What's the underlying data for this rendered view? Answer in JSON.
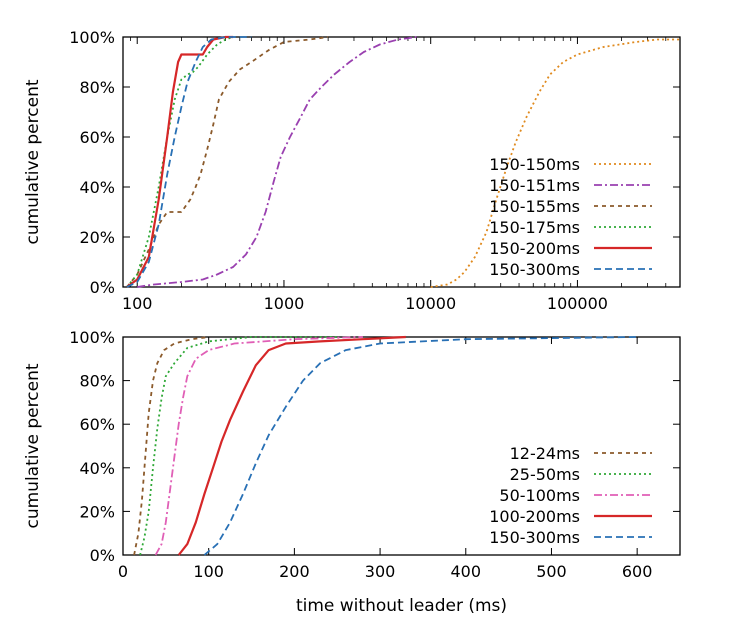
{
  "chart_data": [
    {
      "type": "line",
      "title": "",
      "xlabel": "",
      "ylabel": "cumulative percent",
      "x_scale": "log",
      "xlim": [
        80,
        500000
      ],
      "ylim": [
        0,
        100
      ],
      "x_ticks": [
        {
          "value": 100,
          "label": "100"
        },
        {
          "value": 1000,
          "label": "1000"
        },
        {
          "value": 10000,
          "label": "10000"
        },
        {
          "value": 100000,
          "label": "100000"
        }
      ],
      "y_ticks": [
        {
          "value": 0,
          "label": "0%"
        },
        {
          "value": 20,
          "label": "20%"
        },
        {
          "value": 40,
          "label": "40%"
        },
        {
          "value": 60,
          "label": "60%"
        },
        {
          "value": 80,
          "label": "80%"
        },
        {
          "value": 100,
          "label": "100%"
        }
      ],
      "legend_position": "bottom-right",
      "series": [
        {
          "name": "150-150ms",
          "color": "#e08a1e",
          "dash": "dotted",
          "points": [
            [
              10000,
              0
            ],
            [
              13000,
              1
            ],
            [
              15000,
              3
            ],
            [
              17000,
              6
            ],
            [
              20000,
              12
            ],
            [
              24000,
              22
            ],
            [
              28000,
              35
            ],
            [
              33000,
              48
            ],
            [
              38000,
              58
            ],
            [
              45000,
              68
            ],
            [
              55000,
              78
            ],
            [
              65000,
              85
            ],
            [
              80000,
              90
            ],
            [
              100000,
              93
            ],
            [
              150000,
              96
            ],
            [
              250000,
              98
            ],
            [
              350000,
              99
            ],
            [
              500000,
              99
            ]
          ]
        },
        {
          "name": "150-151ms",
          "color": "#9a40b0",
          "dash": "dashdot",
          "points": [
            [
              100,
              0
            ],
            [
              130,
              1
            ],
            [
              200,
              2
            ],
            [
              280,
              3
            ],
            [
              350,
              5
            ],
            [
              450,
              8
            ],
            [
              550,
              13
            ],
            [
              650,
              20
            ],
            [
              750,
              30
            ],
            [
              850,
              42
            ],
            [
              950,
              52
            ],
            [
              1100,
              60
            ],
            [
              1300,
              68
            ],
            [
              1500,
              75
            ],
            [
              1800,
              80
            ],
            [
              2200,
              85
            ],
            [
              2800,
              90
            ],
            [
              3500,
              94
            ],
            [
              4500,
              97
            ],
            [
              6000,
              99
            ],
            [
              8000,
              100
            ]
          ]
        },
        {
          "name": "150-155ms",
          "color": "#8b5a2b",
          "dash": "dash-short",
          "points": [
            [
              85,
              0
            ],
            [
              100,
              5
            ],
            [
              120,
              15
            ],
            [
              140,
              25
            ],
            [
              160,
              30
            ],
            [
              200,
              30
            ],
            [
              230,
              35
            ],
            [
              250,
              40
            ],
            [
              270,
              45
            ],
            [
              300,
              55
            ],
            [
              330,
              65
            ],
            [
              360,
              75
            ],
            [
              420,
              82
            ],
            [
              500,
              87
            ],
            [
              600,
              90
            ],
            [
              800,
              95
            ],
            [
              1000,
              98
            ],
            [
              1500,
              99
            ],
            [
              2000,
              100
            ]
          ]
        },
        {
          "name": "150-175ms",
          "color": "#2ea836",
          "dash": "dotted",
          "points": [
            [
              85,
              0
            ],
            [
              100,
              5
            ],
            [
              120,
              20
            ],
            [
              140,
              40
            ],
            [
              160,
              60
            ],
            [
              180,
              75
            ],
            [
              200,
              83
            ],
            [
              220,
              85
            ],
            [
              240,
              86
            ],
            [
              260,
              88
            ],
            [
              300,
              93
            ],
            [
              350,
              97
            ],
            [
              400,
              99
            ],
            [
              450,
              100
            ]
          ]
        },
        {
          "name": "150-200ms",
          "color": "#d62728",
          "dash": "solid",
          "points": [
            [
              85,
              0
            ],
            [
              100,
              3
            ],
            [
              120,
              12
            ],
            [
              140,
              35
            ],
            [
              160,
              60
            ],
            [
              175,
              78
            ],
            [
              190,
              90
            ],
            [
              200,
              93
            ],
            [
              280,
              93
            ],
            [
              300,
              96
            ],
            [
              330,
              99
            ],
            [
              400,
              100
            ],
            [
              450,
              100
            ]
          ]
        },
        {
          "name": "150-300ms",
          "color": "#2870b5",
          "dash": "dashed",
          "points": [
            [
              85,
              0
            ],
            [
              100,
              2
            ],
            [
              120,
              10
            ],
            [
              140,
              25
            ],
            [
              160,
              45
            ],
            [
              180,
              60
            ],
            [
              200,
              72
            ],
            [
              220,
              82
            ],
            [
              250,
              90
            ],
            [
              280,
              96
            ],
            [
              320,
              99
            ],
            [
              400,
              100
            ],
            [
              600,
              100
            ]
          ]
        }
      ]
    },
    {
      "type": "line",
      "title": "",
      "xlabel": "time without leader (ms)",
      "ylabel": "cumulative percent",
      "x_scale": "linear",
      "xlim": [
        0,
        650
      ],
      "ylim": [
        0,
        100
      ],
      "x_ticks": [
        {
          "value": 0,
          "label": "0"
        },
        {
          "value": 100,
          "label": "100"
        },
        {
          "value": 200,
          "label": "200"
        },
        {
          "value": 300,
          "label": "300"
        },
        {
          "value": 400,
          "label": "400"
        },
        {
          "value": 500,
          "label": "500"
        },
        {
          "value": 600,
          "label": "600"
        }
      ],
      "y_ticks": [
        {
          "value": 0,
          "label": "0%"
        },
        {
          "value": 20,
          "label": "20%"
        },
        {
          "value": 40,
          "label": "40%"
        },
        {
          "value": 60,
          "label": "60%"
        },
        {
          "value": 80,
          "label": "80%"
        },
        {
          "value": 100,
          "label": "100%"
        }
      ],
      "legend_position": "bottom-right",
      "series": [
        {
          "name": "12-24ms",
          "color": "#8b5a2b",
          "dash": "dash-short",
          "points": [
            [
              13,
              0
            ],
            [
              18,
              10
            ],
            [
              22,
              25
            ],
            [
              26,
              45
            ],
            [
              30,
              65
            ],
            [
              35,
              80
            ],
            [
              40,
              88
            ],
            [
              48,
              94
            ],
            [
              60,
              97
            ],
            [
              80,
              99
            ],
            [
              100,
              100
            ]
          ]
        },
        {
          "name": "25-50ms",
          "color": "#2ea836",
          "dash": "dotted",
          "points": [
            [
              20,
              0
            ],
            [
              25,
              8
            ],
            [
              30,
              20
            ],
            [
              35,
              40
            ],
            [
              40,
              58
            ],
            [
              45,
              72
            ],
            [
              50,
              82
            ],
            [
              60,
              88
            ],
            [
              75,
              95
            ],
            [
              100,
              98
            ],
            [
              150,
              100
            ],
            [
              250,
              100
            ]
          ]
        },
        {
          "name": "50-100ms",
          "color": "#e05fb6",
          "dash": "dashdot",
          "points": [
            [
              38,
              0
            ],
            [
              45,
              5
            ],
            [
              50,
              15
            ],
            [
              55,
              30
            ],
            [
              60,
              45
            ],
            [
              65,
              60
            ],
            [
              70,
              72
            ],
            [
              75,
              82
            ],
            [
              85,
              90
            ],
            [
              100,
              94
            ],
            [
              130,
              97
            ],
            [
              200,
              99
            ],
            [
              280,
              100
            ]
          ]
        },
        {
          "name": "100-200ms",
          "color": "#d62728",
          "dash": "solid",
          "points": [
            [
              65,
              0
            ],
            [
              75,
              5
            ],
            [
              85,
              15
            ],
            [
              95,
              28
            ],
            [
              105,
              40
            ],
            [
              115,
              52
            ],
            [
              125,
              62
            ],
            [
              140,
              75
            ],
            [
              155,
              87
            ],
            [
              170,
              94
            ],
            [
              190,
              97
            ],
            [
              230,
              98
            ],
            [
              280,
              99
            ],
            [
              330,
              100
            ]
          ]
        },
        {
          "name": "150-300ms",
          "color": "#2870b5",
          "dash": "dashed",
          "points": [
            [
              95,
              0
            ],
            [
              110,
              5
            ],
            [
              125,
              15
            ],
            [
              140,
              28
            ],
            [
              155,
              42
            ],
            [
              170,
              55
            ],
            [
              190,
              68
            ],
            [
              210,
              80
            ],
            [
              230,
              88
            ],
            [
              260,
              94
            ],
            [
              300,
              97
            ],
            [
              400,
              99
            ],
            [
              600,
              100
            ]
          ]
        }
      ]
    }
  ]
}
